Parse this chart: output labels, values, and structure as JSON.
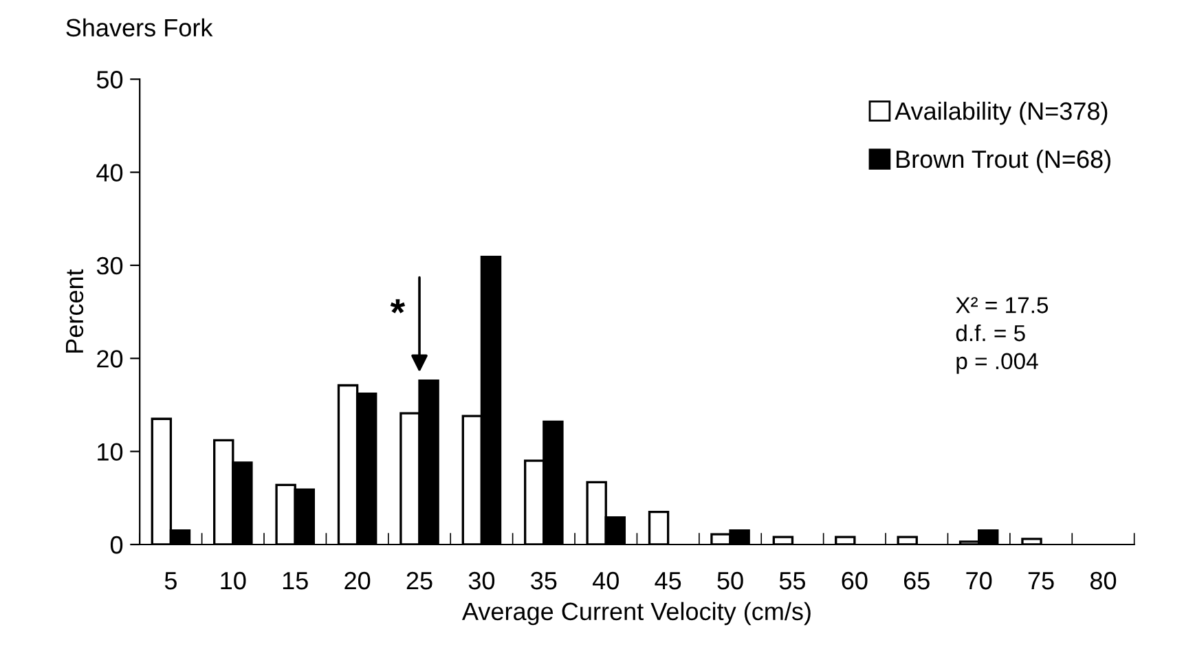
{
  "chart_data": {
    "type": "bar",
    "title": "Shavers Fork",
    "xlabel": "Average Current Velocity (cm/s)",
    "ylabel": "Percent",
    "categories": [
      "5",
      "10",
      "15",
      "20",
      "25",
      "30",
      "35",
      "40",
      "45",
      "50",
      "55",
      "60",
      "65",
      "70",
      "75",
      "80"
    ],
    "series": [
      {
        "name": "Availability (N=378)",
        "color": "#ffffff",
        "values": [
          13.5,
          11.2,
          6.4,
          17.1,
          14.1,
          13.8,
          9.0,
          6.7,
          3.5,
          1.1,
          0.8,
          0.8,
          0.8,
          0.3,
          0.6,
          0
        ]
      },
      {
        "name": "Brown Trout (N=68)",
        "color": "#000000",
        "values": [
          1.5,
          8.8,
          5.9,
          16.2,
          17.6,
          30.9,
          13.2,
          2.9,
          0,
          1.5,
          0,
          0,
          0,
          1.5,
          0,
          0
        ]
      }
    ],
    "ylim": [
      0,
      50
    ],
    "yticks": [
      0,
      10,
      20,
      30,
      40,
      50
    ],
    "grid": false,
    "legend": "top right",
    "annotations": [
      {
        "text": "*",
        "x": "25",
        "y": 17.6
      },
      "X² = 17.5\nd.f. = 5\np = .004"
    ]
  }
}
